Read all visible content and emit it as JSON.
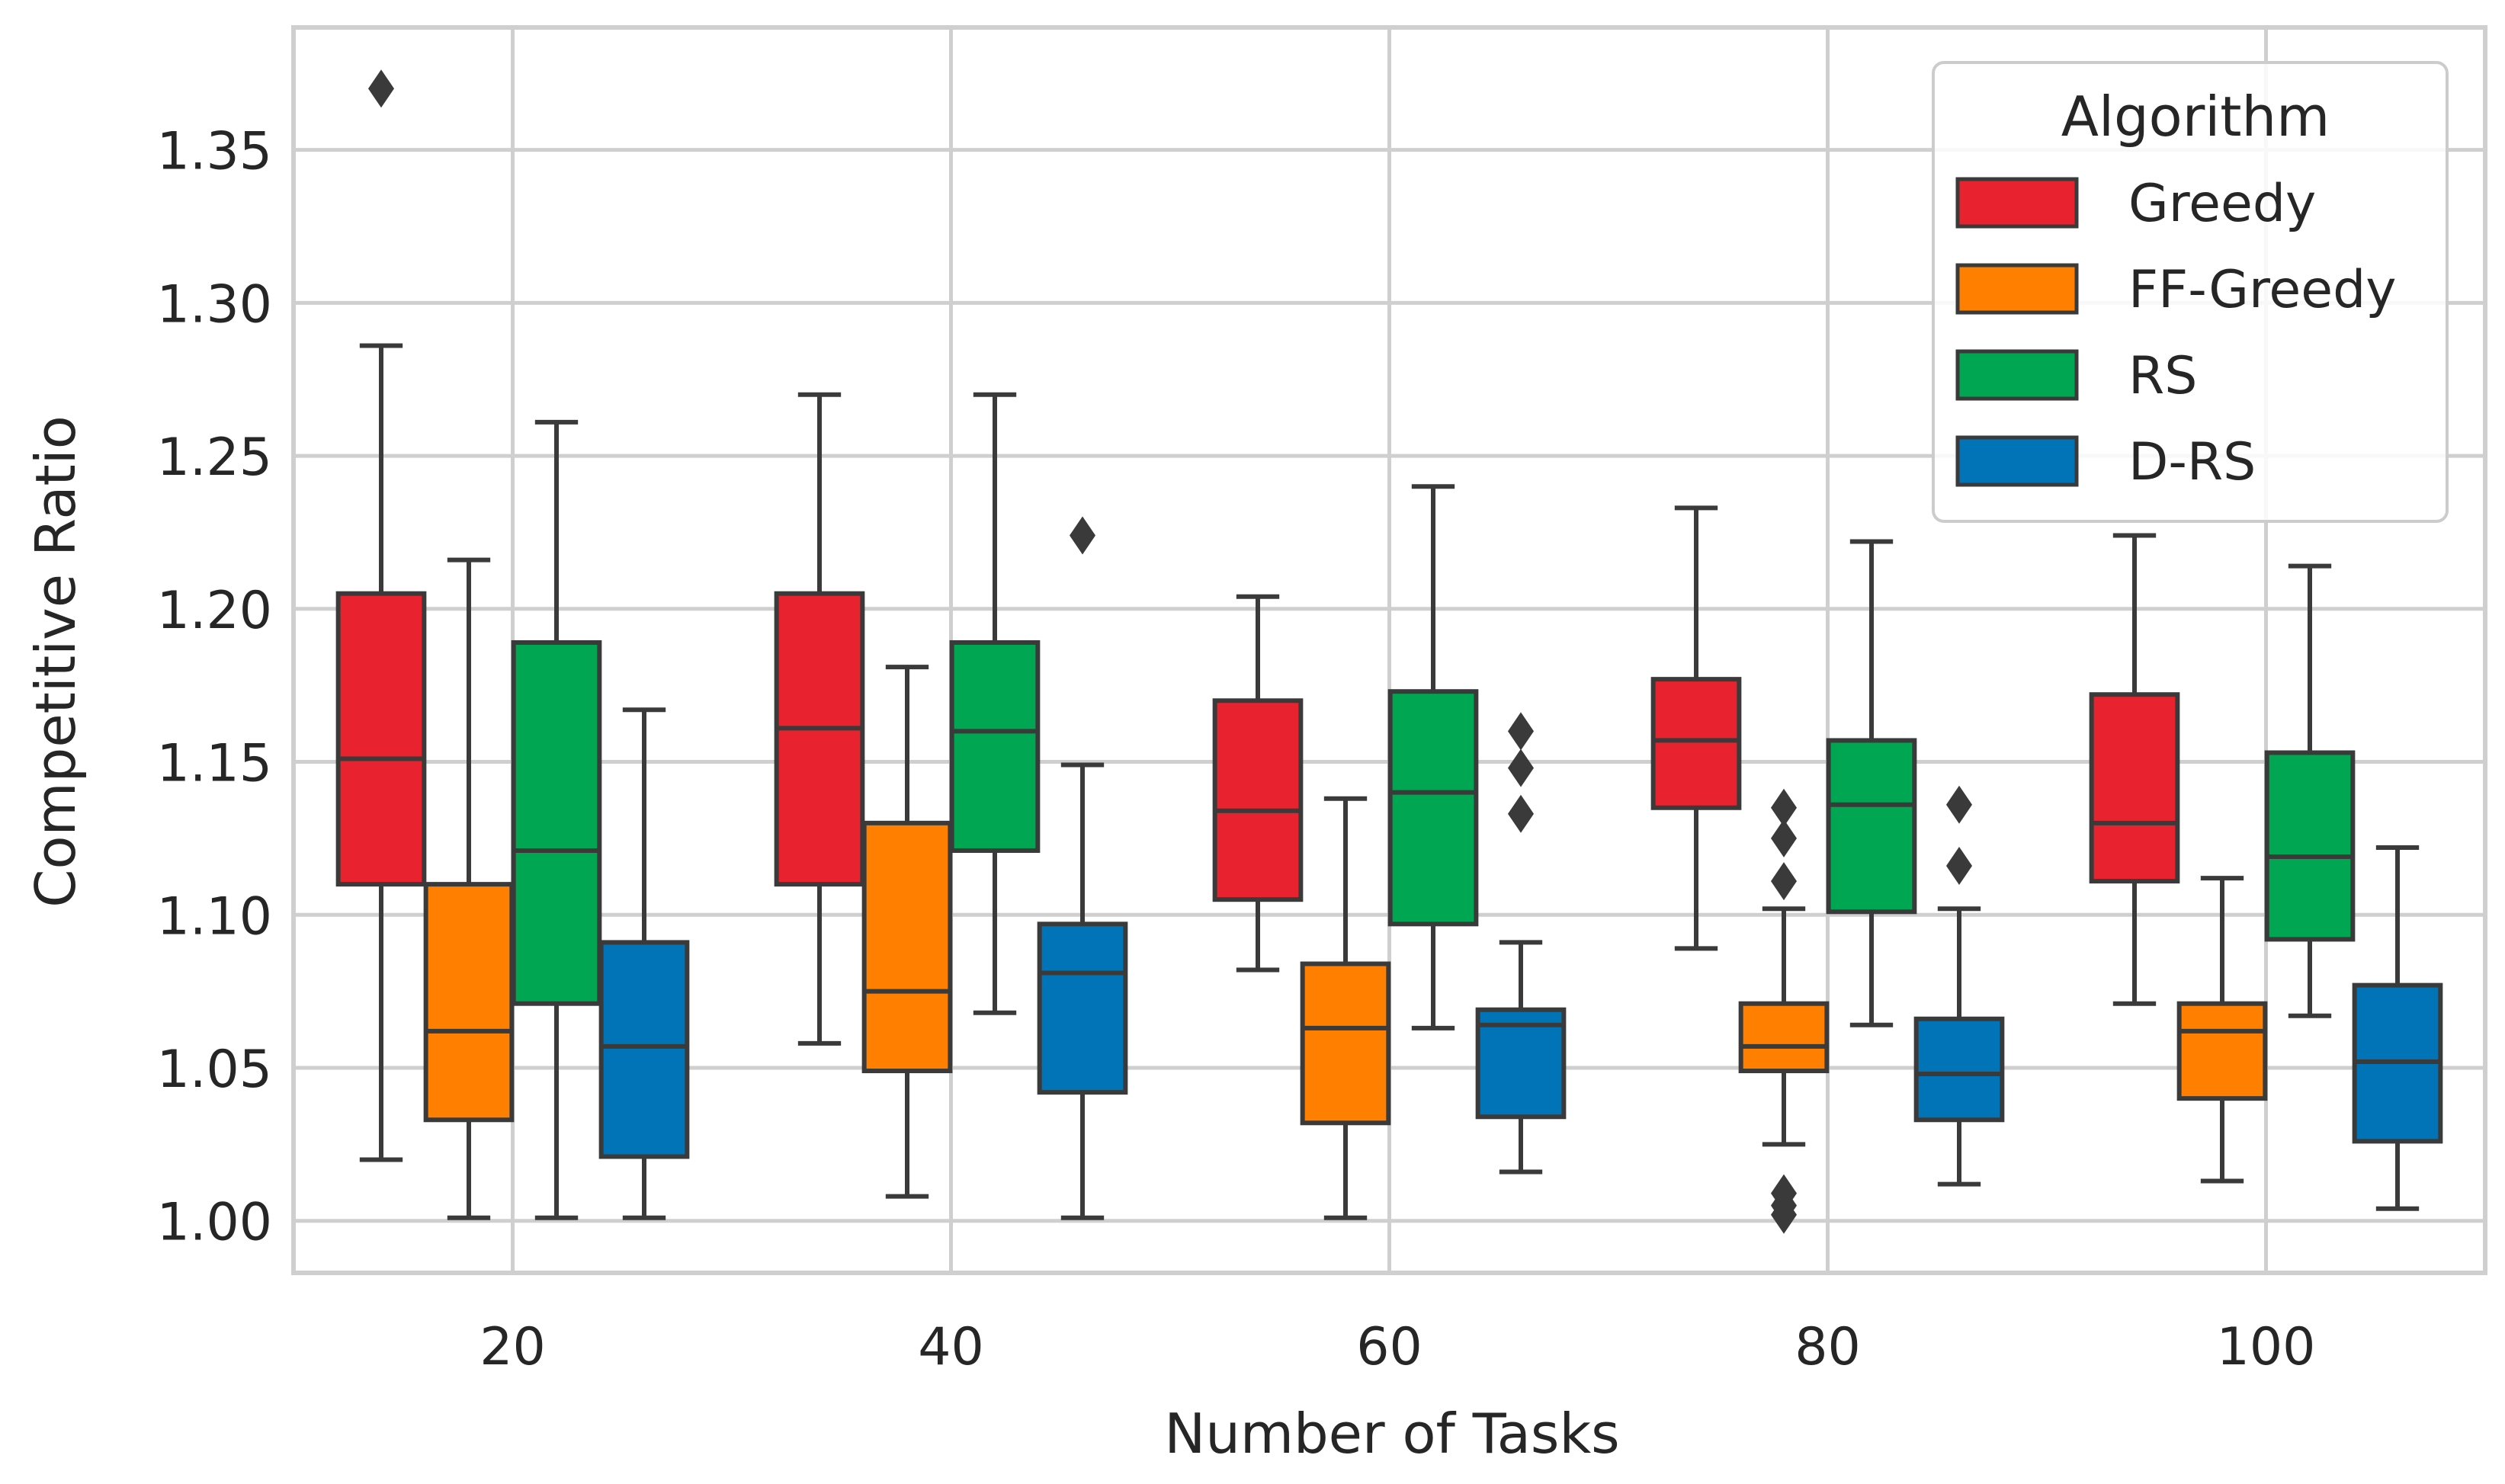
{
  "colors": {
    "greedy": "#e8232f",
    "ff_greedy": "#ff7f00",
    "rs": "#00a651",
    "d_rs": "#0174b8",
    "edge": "#3a3a3a",
    "grid": "#cfcfcf",
    "frame": "#cfcfcf"
  },
  "chart_data": {
    "type": "boxplot",
    "title": "",
    "xlabel": "Number of Tasks",
    "ylabel": "Competitive Ratio",
    "ylim": [
      0.983,
      1.39
    ],
    "yticks": [
      "1.00",
      "1.05",
      "1.10",
      "1.15",
      "1.20",
      "1.25",
      "1.30",
      "1.35"
    ],
    "categories": [
      "20",
      "40",
      "60",
      "80",
      "100"
    ],
    "legend": {
      "title": "Algorithm",
      "position": "top-right"
    },
    "series": [
      {
        "name": "Greedy",
        "color_key": "greedy",
        "boxes": [
          {
            "whislo": 1.02,
            "q1": 1.11,
            "median": 1.151,
            "q3": 1.205,
            "whishi": 1.286,
            "fliers": [
              1.37
            ]
          },
          {
            "whislo": 1.058,
            "q1": 1.11,
            "median": 1.161,
            "q3": 1.205,
            "whishi": 1.27,
            "fliers": []
          },
          {
            "whislo": 1.082,
            "q1": 1.105,
            "median": 1.134,
            "q3": 1.17,
            "whishi": 1.204,
            "fliers": []
          },
          {
            "whislo": 1.089,
            "q1": 1.135,
            "median": 1.157,
            "q3": 1.177,
            "whishi": 1.233,
            "fliers": []
          },
          {
            "whislo": 1.071,
            "q1": 1.111,
            "median": 1.13,
            "q3": 1.172,
            "whishi": 1.224,
            "fliers": []
          }
        ]
      },
      {
        "name": "FF-Greedy",
        "color_key": "ff_greedy",
        "boxes": [
          {
            "whislo": 1.001,
            "q1": 1.033,
            "median": 1.062,
            "q3": 1.11,
            "whishi": 1.216,
            "fliers": []
          },
          {
            "whislo": 1.008,
            "q1": 1.049,
            "median": 1.075,
            "q3": 1.13,
            "whishi": 1.181,
            "fliers": []
          },
          {
            "whislo": 1.001,
            "q1": 1.032,
            "median": 1.063,
            "q3": 1.084,
            "whishi": 1.138,
            "fliers": []
          },
          {
            "whislo": 1.025,
            "q1": 1.049,
            "median": 1.057,
            "q3": 1.071,
            "whishi": 1.102,
            "fliers": [
              1.135,
              1.125,
              1.111,
              1.009,
              1.005,
              1.002
            ]
          },
          {
            "whislo": 1.013,
            "q1": 1.04,
            "median": 1.062,
            "q3": 1.071,
            "whishi": 1.112,
            "fliers": []
          }
        ]
      },
      {
        "name": "RS",
        "color_key": "rs",
        "boxes": [
          {
            "whislo": 1.001,
            "q1": 1.071,
            "median": 1.121,
            "q3": 1.189,
            "whishi": 1.261,
            "fliers": []
          },
          {
            "whislo": 1.068,
            "q1": 1.121,
            "median": 1.16,
            "q3": 1.189,
            "whishi": 1.27,
            "fliers": []
          },
          {
            "whislo": 1.063,
            "q1": 1.097,
            "median": 1.14,
            "q3": 1.173,
            "whishi": 1.24,
            "fliers": []
          },
          {
            "whislo": 1.064,
            "q1": 1.101,
            "median": 1.136,
            "q3": 1.157,
            "whishi": 1.222,
            "fliers": []
          },
          {
            "whislo": 1.067,
            "q1": 1.092,
            "median": 1.119,
            "q3": 1.153,
            "whishi": 1.214,
            "fliers": []
          }
        ]
      },
      {
        "name": "D-RS",
        "color_key": "d_rs",
        "boxes": [
          {
            "whislo": 1.001,
            "q1": 1.021,
            "median": 1.057,
            "q3": 1.091,
            "whishi": 1.167,
            "fliers": []
          },
          {
            "whislo": 1.001,
            "q1": 1.042,
            "median": 1.081,
            "q3": 1.097,
            "whishi": 1.149,
            "fliers": [
              1.224
            ]
          },
          {
            "whislo": 1.016,
            "q1": 1.034,
            "median": 1.064,
            "q3": 1.069,
            "whishi": 1.091,
            "fliers": [
              1.16,
              1.148,
              1.133
            ]
          },
          {
            "whislo": 1.012,
            "q1": 1.033,
            "median": 1.048,
            "q3": 1.066,
            "whishi": 1.102,
            "fliers": [
              1.136,
              1.116
            ]
          },
          {
            "whislo": 1.004,
            "q1": 1.026,
            "median": 1.052,
            "q3": 1.077,
            "whishi": 1.122,
            "fliers": []
          }
        ]
      }
    ]
  }
}
